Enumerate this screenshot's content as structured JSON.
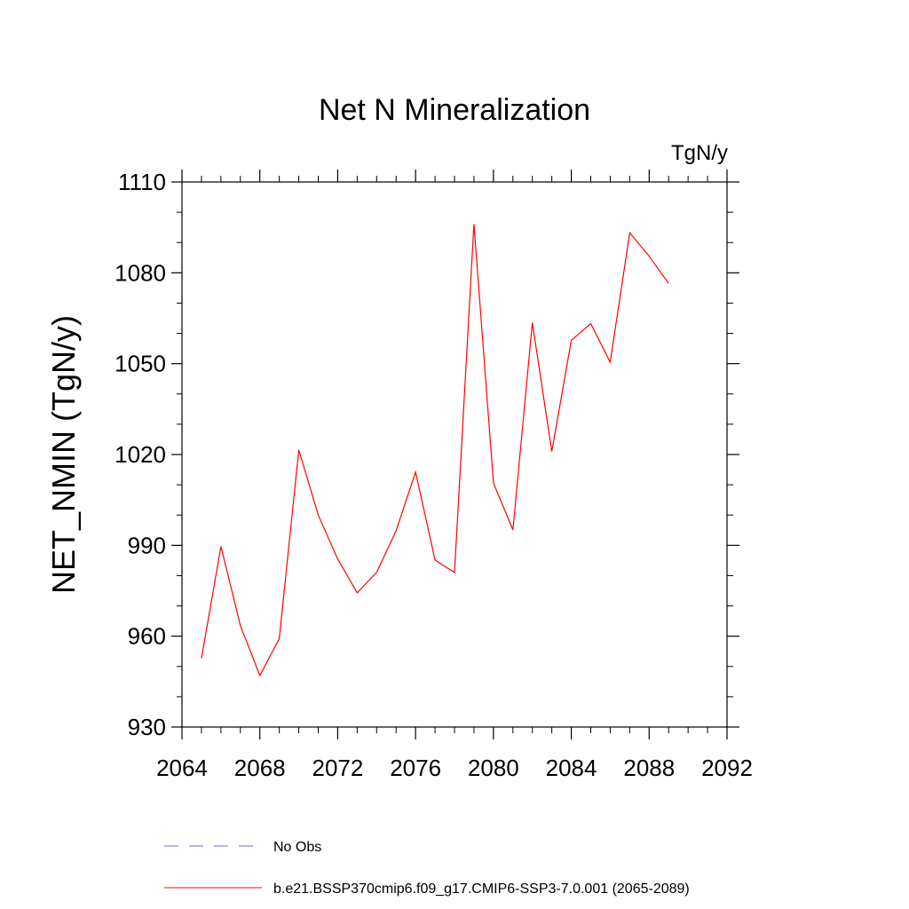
{
  "chart_data": {
    "type": "line",
    "title": "Net N Mineralization",
    "units_label": "TgN/y",
    "ylabel": "NET_NMIN  (TgN/y)",
    "xlabel": "",
    "xlim": [
      2064,
      2092
    ],
    "ylim": [
      930,
      1110
    ],
    "x_ticks": [
      2064,
      2068,
      2072,
      2076,
      2080,
      2084,
      2088,
      2092
    ],
    "y_ticks": [
      930,
      960,
      990,
      1020,
      1050,
      1080,
      1110
    ],
    "grid": false,
    "colors": {
      "series": "#ff0000",
      "no_obs": "#6f6fc8",
      "axis": "#000000"
    },
    "series": [
      {
        "name": "b.e21.BSSP370cmip6.f09_g17.CMIP6-SSP3-7.0.001 (2065-2089)",
        "x": [
          2065,
          2066,
          2067,
          2068,
          2069,
          2070,
          2071,
          2072,
          2073,
          2074,
          2075,
          2076,
          2077,
          2078,
          2079,
          2080,
          2081,
          2082,
          2083,
          2084,
          2085,
          2086,
          2087,
          2088,
          2089
        ],
        "values": [
          952.7,
          989.6,
          963.5,
          947.0,
          959.2,
          1021.5,
          1000.0,
          985.5,
          974.3,
          981.1,
          994.8,
          1014.2,
          985.1,
          981.0,
          1096.1,
          1010.6,
          995.1,
          1063.5,
          1021.0,
          1057.7,
          1063.2,
          1050.5,
          1093.2,
          1085.5,
          1076.5
        ]
      }
    ],
    "legend": {
      "placement": "bottom",
      "entries": [
        {
          "label": "No Obs",
          "style": "dashed"
        },
        {
          "label": "b.e21.BSSP370cmip6.f09_g17.CMIP6-SSP3-7.0.001 (2065-2089)",
          "style": "solid"
        }
      ]
    }
  }
}
